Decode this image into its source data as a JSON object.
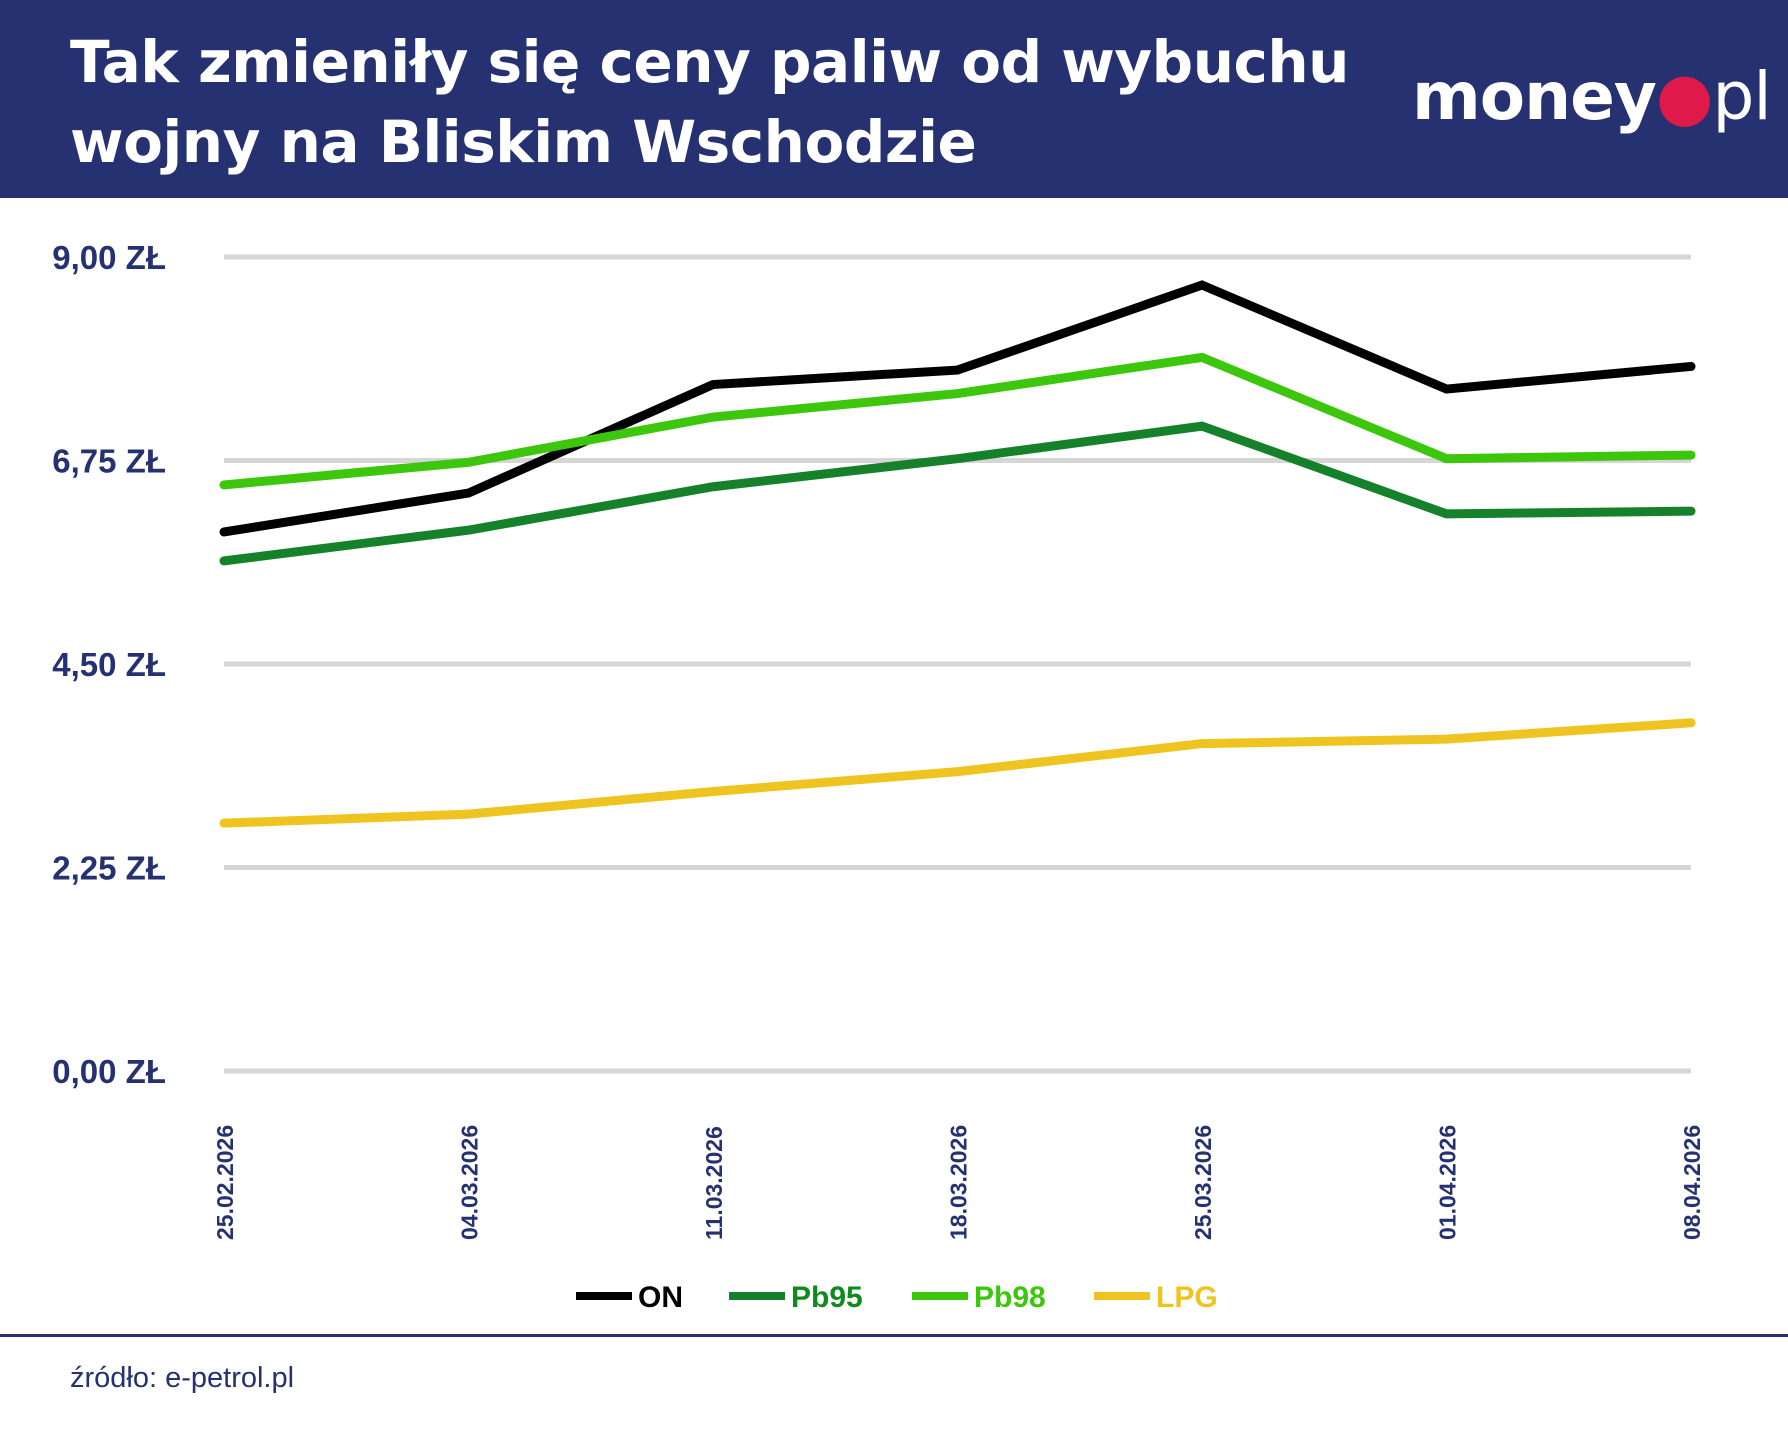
{
  "header": {
    "title_line1": "Tak zmieniły się ceny paliw od wybuchu",
    "title_line2": "wojny na Bliskim Wschodzie",
    "logo": "money.pl",
    "background": "#253170"
  },
  "source": "źródło: e-petrol.pl",
  "chart_data": {
    "type": "line",
    "title": "Tak zmieniły się ceny paliw od wybuchu wojny na Bliskim Wschodzie",
    "xlabel": "",
    "ylabel": "",
    "categories": [
      "25.02.2026",
      "04.03.2026",
      "11.03.2026",
      "18.03.2026",
      "25.03.2026",
      "01.04.2026",
      "08.04.2026"
    ],
    "ylim": [
      0,
      9
    ],
    "yticks": [
      0,
      2.25,
      4.5,
      6.75,
      9
    ],
    "ytick_labels": [
      "0,00 ZŁ",
      "2,25 ZŁ",
      "4,50 ZŁ",
      "6,75 ZŁ",
      "9,00 ZŁ"
    ],
    "grid": true,
    "legend_position": "bottom",
    "series": [
      {
        "name": "ON",
        "color": "#000000",
        "values": [
          5.96,
          6.39,
          7.59,
          7.75,
          8.69,
          7.54,
          7.79
        ]
      },
      {
        "name": "Pb95",
        "color": "#16812b",
        "values": [
          5.64,
          5.98,
          6.46,
          6.77,
          7.13,
          6.16,
          6.19
        ]
      },
      {
        "name": "Pb98",
        "color": "#3cc70c",
        "values": [
          6.48,
          6.73,
          7.23,
          7.49,
          7.89,
          6.77,
          6.81
        ]
      },
      {
        "name": "LPG",
        "color": "#f0c420",
        "values": [
          2.74,
          2.84,
          3.09,
          3.31,
          3.62,
          3.67,
          3.85
        ]
      }
    ]
  }
}
